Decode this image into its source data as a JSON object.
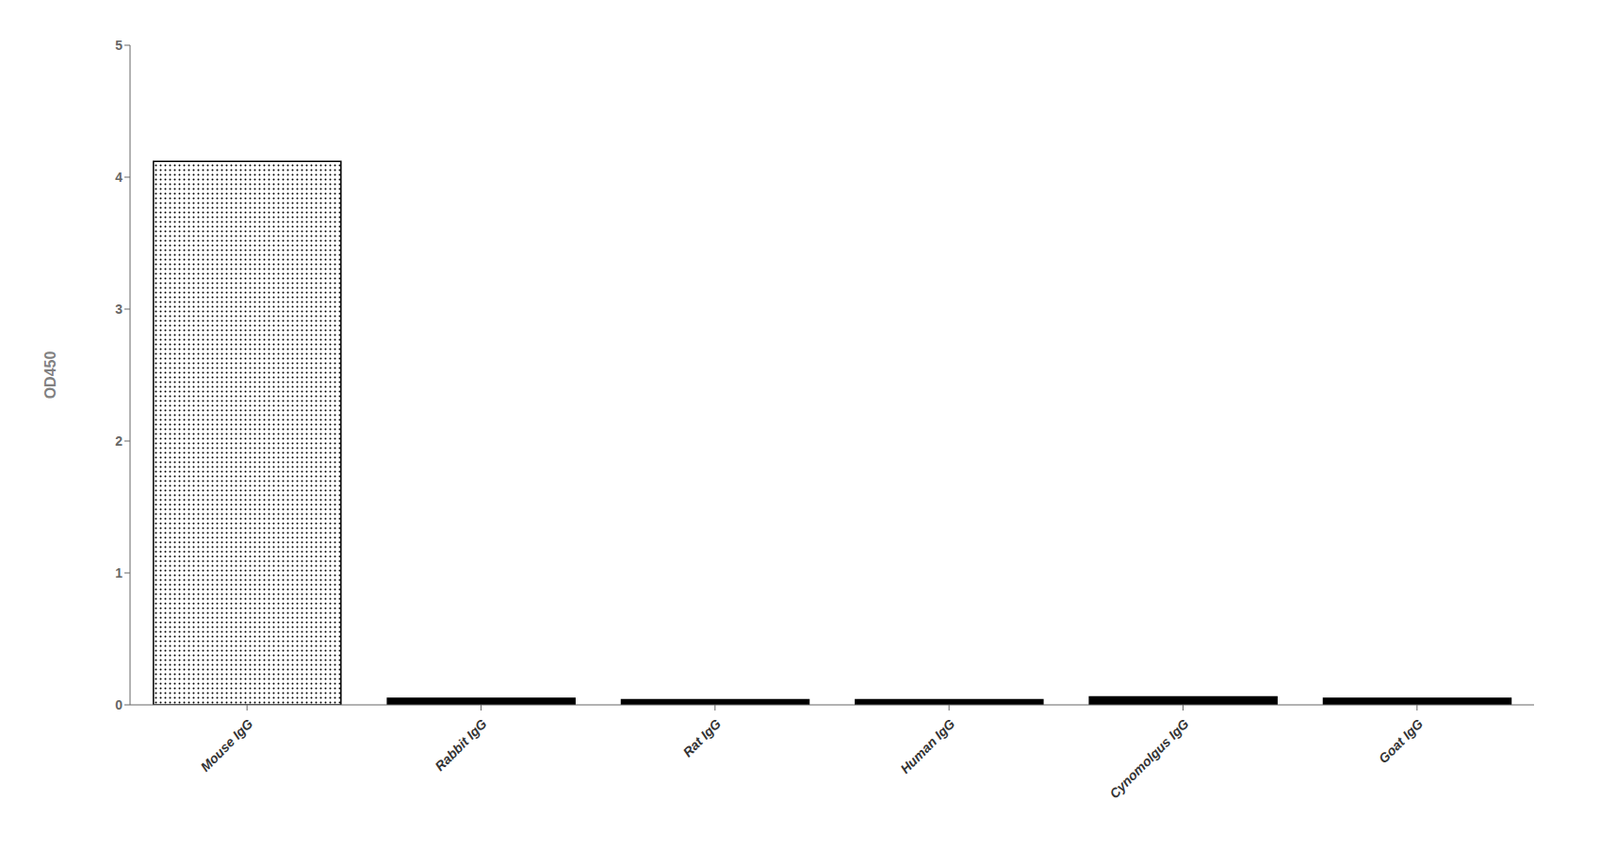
{
  "chart_data": {
    "type": "bar",
    "categories": [
      "Mouse IgG",
      "Rabbit IgG",
      "Rat IgG",
      "Human IgG",
      "Cynomolgus IgG",
      "Goat IgG"
    ],
    "values": [
      4.12,
      0.05,
      0.04,
      0.04,
      0.06,
      0.05
    ],
    "colors": [
      "#ffffff",
      "#000000",
      "#000000",
      "#000000",
      "#000000",
      "#000000"
    ],
    "ylabel": "OD450",
    "ylim": [
      0,
      5
    ],
    "yticks": [
      0,
      1,
      2,
      3,
      4,
      5
    ],
    "grid": false
  }
}
